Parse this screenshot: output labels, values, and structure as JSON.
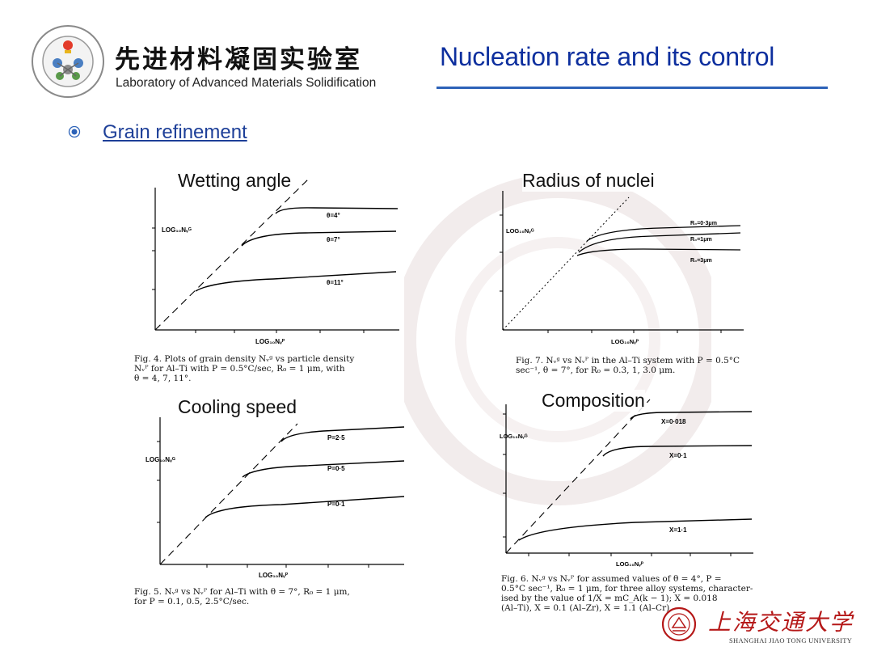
{
  "header": {
    "lab_name_cn": "先进材料凝固实验室",
    "lab_name_en": "Laboratory of Advanced Materials Solidification",
    "title": "Nucleation rate and its control",
    "logo_icon": "lab-seal-logo"
  },
  "section": {
    "bullet_icon": "circle-bullet-icon",
    "heading": "Grain refinement"
  },
  "panels": [
    {
      "label": "Wetting angle",
      "ylabel": "LOG₁₀Nᵥᴳ",
      "xlabel": "LOG₁₀Nᵥᴾ",
      "curve_labels": [
        "θ=4°",
        "θ=7°",
        "θ=11°"
      ],
      "caption": "Fig. 4. Plots of grain density Nᵥᵍ vs particle density\nNᵥᴾ for Al–Ti with P = 0.5°C/sec, R₀ = 1 μm, with\nθ = 4, 7, 11°."
    },
    {
      "label": "Radius of nuclei",
      "ylabel": "LOG₁₀Nᵥᴳ",
      "xlabel": "LOG₁₀Nᵥᴾ",
      "curve_labels": [
        "R₀=0·3μm",
        "R₀=1μm",
        "R₀=3μm"
      ],
      "caption": "Fig. 7. Nᵥᵍ vs Nᵥᴾ in the Al–Ti system with P = 0.5°C\nsec⁻¹, θ = 7°, for R₀ = 0.3, 1, 3.0 μm."
    },
    {
      "label": "Cooling speed",
      "ylabel": "LOG₁₀Nᵥᴳ",
      "xlabel": "LOG₁₀Nᵥᴾ",
      "curve_labels": [
        "P=2·5",
        "P=0·5",
        "P=0·1"
      ],
      "caption": "Fig. 5. Nᵥᵍ vs Nᵥᴾ for Al–Ti with θ = 7°, R₀ = 1 μm,\nfor P = 0.1, 0.5, 2.5°C/sec."
    },
    {
      "label": "Composition",
      "ylabel": "LOG₁₀Nᵥᴳ",
      "xlabel": "LOG₁₀Nᵥᴾ",
      "curve_labels": [
        "X=0·018",
        "X=0·1",
        "X=1·1"
      ],
      "caption": "Fig. 6. Nᵥᵍ vs Nᵥᴾ for assumed values of θ = 4°, P =\n0.5°C sec⁻¹, R₀ = 1 μm, for three alloy systems, character-\nised by the value of 1/X = mC_A(k − 1); X = 0.018\n(Al–Ti), X = 0.1 (Al–Zr), X = 1.1 (Al–Cr)."
    }
  ],
  "footer": {
    "university_cn": "上海交通大学",
    "university_en": "SHANGHAI JIAO TONG UNIVERSITY",
    "logo_icon": "sjtu-seal-icon"
  },
  "colors": {
    "title_blue": "#0d2f9e",
    "rule_blue": "#2c62b8",
    "sjtu_red": "#b51818"
  }
}
